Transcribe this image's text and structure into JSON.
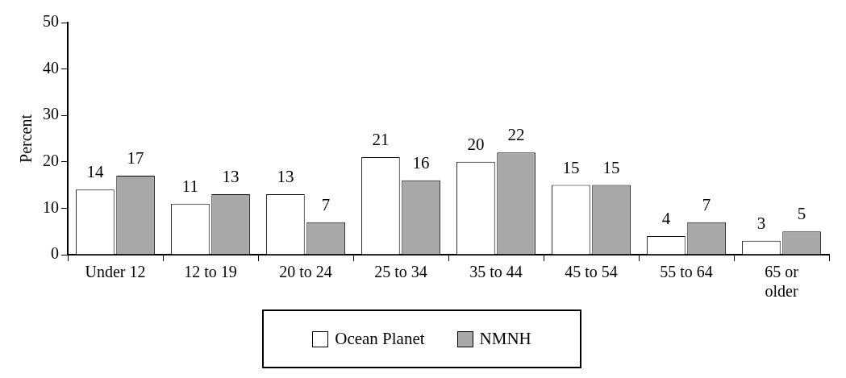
{
  "chart_data": {
    "type": "bar",
    "ylabel": "Percent",
    "categories": [
      "Under 12",
      "12 to 19",
      "20 to 24",
      "25 to 34",
      "35 to 44",
      "45 to 54",
      "55 to 64",
      "65 or older"
    ],
    "series": [
      {
        "name": "Ocean Planet",
        "color": "#ffffff",
        "values": [
          14,
          11,
          13,
          21,
          20,
          15,
          4,
          3
        ]
      },
      {
        "name": "NMNH",
        "color": "#a8a8a8",
        "values": [
          17,
          13,
          7,
          16,
          22,
          15,
          7,
          5
        ]
      }
    ],
    "ylim": [
      0,
      50
    ],
    "yticks": [
      0,
      10,
      20,
      30,
      40,
      50
    ],
    "grid": false,
    "legend": "bottom",
    "data_labels": true
  }
}
